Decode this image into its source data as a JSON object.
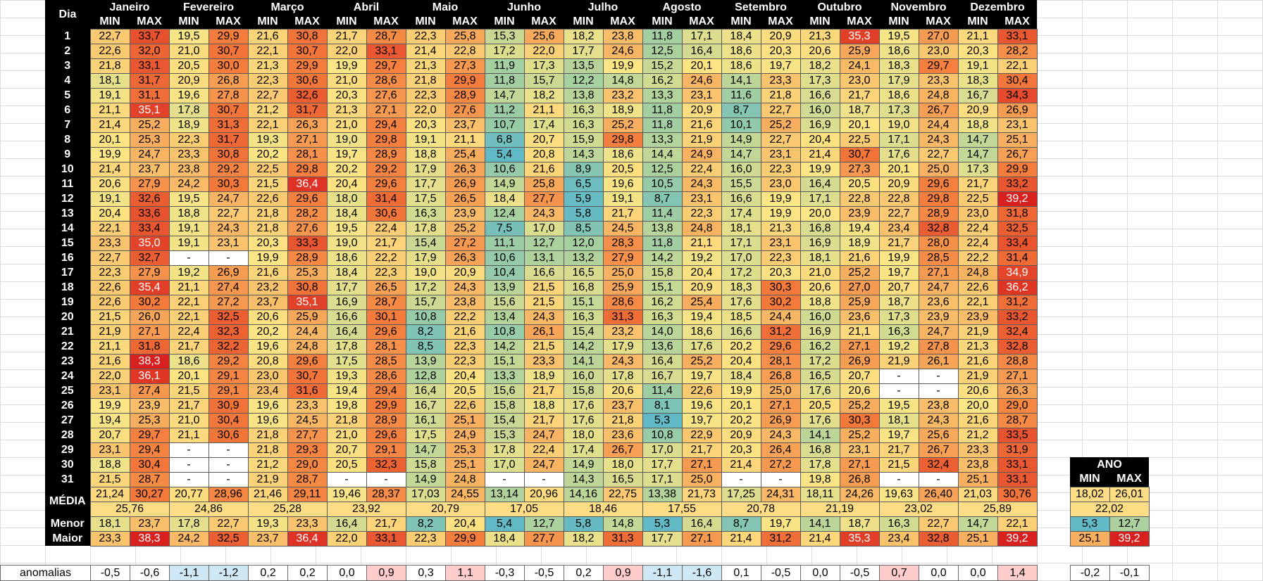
{
  "header": {
    "dia": "Dia",
    "min": "MIN",
    "max": "MAX",
    "months": [
      "Janeiro",
      "Fevereiro",
      "Março",
      "Abril",
      "Maio",
      "Junho",
      "Julho",
      "Agosto",
      "Setembro",
      "Outubro",
      "Novembro",
      "Dezembro"
    ]
  },
  "days": [
    [
      "22,7",
      "33,7",
      "19,5",
      "29,9",
      "21,6",
      "30,8",
      "21,7",
      "28,7",
      "22,3",
      "25,8",
      "15,3",
      "25,6",
      "18,2",
      "23,8",
      "11,8",
      "17,1",
      "18,4",
      "20,9",
      "21,3",
      "35,3",
      "19,5",
      "27,0",
      "21,1",
      "33,1"
    ],
    [
      "22,6",
      "32,0",
      "21,0",
      "30,7",
      "22,1",
      "30,7",
      "22,0",
      "33,1",
      "21,4",
      "22,8",
      "17,2",
      "22,0",
      "17,7",
      "24,6",
      "12,5",
      "16,4",
      "18,6",
      "20,3",
      "20,6",
      "25,9",
      "18,6",
      "23,0",
      "20,3",
      "28,2"
    ],
    [
      "21,8",
      "33,1",
      "20,5",
      "30,0",
      "21,3",
      "29,9",
      "19,9",
      "29,7",
      "21,3",
      "27,3",
      "11,9",
      "17,3",
      "13,5",
      "19,9",
      "15,2",
      "20,1",
      "18,6",
      "19,7",
      "18,2",
      "24,1",
      "18,3",
      "29,7",
      "19,1",
      "22,1"
    ],
    [
      "18,1",
      "31,7",
      "20,9",
      "26,8",
      "22,3",
      "30,6",
      "21,0",
      "28,6",
      "21,8",
      "29,9",
      "11,8",
      "15,7",
      "12,2",
      "14,8",
      "16,2",
      "24,6",
      "14,1",
      "23,3",
      "17,3",
      "23,0",
      "17,9",
      "23,3",
      "18,3",
      "30,4"
    ],
    [
      "19,1",
      "31,1",
      "19,6",
      "27,8",
      "22,7",
      "32,6",
      "20,3",
      "27,6",
      "22,3",
      "28,9",
      "14,7",
      "18,2",
      "13,8",
      "23,2",
      "13,3",
      "23,1",
      "11,6",
      "21,8",
      "16,6",
      "21,7",
      "18,6",
      "24,8",
      "16,7",
      "34,3"
    ],
    [
      "21,1",
      "35,1",
      "17,8",
      "30,7",
      "21,2",
      "31,7",
      "21,3",
      "27,1",
      "22,0",
      "27,6",
      "11,2",
      "21,1",
      "16,3",
      "18,9",
      "11,8",
      "20,9",
      "8,7",
      "22,7",
      "16,0",
      "18,7",
      "17,3",
      "26,7",
      "20,9",
      "26,9"
    ],
    [
      "21,4",
      "25,2",
      "18,9",
      "31,3",
      "22,1",
      "26,3",
      "21,0",
      "29,4",
      "20,3",
      "23,7",
      "10,7",
      "17,4",
      "16,3",
      "25,2",
      "11,8",
      "21,6",
      "10,1",
      "25,2",
      "16,9",
      "20,1",
      "19,0",
      "24,4",
      "18,8",
      "23,1"
    ],
    [
      "20,1",
      "25,3",
      "22,3",
      "31,7",
      "19,3",
      "27,1",
      "19,0",
      "29,8",
      "19,1",
      "21,1",
      "6,8",
      "20,7",
      "15,9",
      "29,8",
      "13,3",
      "21,9",
      "14,9",
      "22,7",
      "20,4",
      "22,5",
      "17,1",
      "24,3",
      "14,7",
      "25,1"
    ],
    [
      "19,9",
      "24,7",
      "23,3",
      "30,8",
      "20,2",
      "28,1",
      "19,7",
      "28,9",
      "18,8",
      "25,4",
      "5,4",
      "20,8",
      "14,3",
      "18,6",
      "14,4",
      "24,9",
      "14,7",
      "23,1",
      "21,4",
      "30,7",
      "17,6",
      "22,7",
      "14,7",
      "26,7"
    ],
    [
      "21,4",
      "23,7",
      "23,8",
      "29,2",
      "22,5",
      "29,8",
      "20,2",
      "29,2",
      "17,9",
      "26,3",
      "10,6",
      "21,6",
      "8,9",
      "20,5",
      "12,5",
      "22,4",
      "16,0",
      "22,3",
      "19,9",
      "27,3",
      "20,1",
      "25,0",
      "17,3",
      "29,9"
    ],
    [
      "20,6",
      "27,9",
      "24,2",
      "30,3",
      "21,5",
      "36,4",
      "20,4",
      "29,6",
      "17,7",
      "26,9",
      "14,9",
      "25,8",
      "6,5",
      "19,6",
      "10,5",
      "24,3",
      "15,5",
      "23,0",
      "16,4",
      "20,5",
      "20,9",
      "29,6",
      "21,7",
      "33,2"
    ],
    [
      "19,1",
      "32,6",
      "19,5",
      "24,7",
      "22,6",
      "29,6",
      "18,0",
      "31,4",
      "17,5",
      "26,5",
      "18,4",
      "27,7",
      "5,9",
      "19,1",
      "8,7",
      "23,1",
      "16,6",
      "19,9",
      "17,1",
      "22,8",
      "22,8",
      "29,8",
      "22,5",
      "39,2"
    ],
    [
      "20,4",
      "33,6",
      "18,8",
      "22,7",
      "21,8",
      "28,2",
      "18,4",
      "30,6",
      "16,3",
      "23,9",
      "12,4",
      "24,3",
      "5,8",
      "21,7",
      "11,4",
      "22,3",
      "17,4",
      "19,9",
      "20,0",
      "23,9",
      "22,7",
      "28,9",
      "23,0",
      "31,8"
    ],
    [
      "22,1",
      "33,4",
      "19,1",
      "24,3",
      "21,8",
      "27,6",
      "19,5",
      "22,4",
      "17,8",
      "25,2",
      "7,5",
      "17,0",
      "8,5",
      "24,5",
      "13,8",
      "24,8",
      "18,1",
      "21,3",
      "16,8",
      "19,4",
      "23,4",
      "32,8",
      "22,4",
      "32,5"
    ],
    [
      "23,3",
      "35,0",
      "19,1",
      "23,1",
      "20,3",
      "33,3",
      "19,0",
      "21,7",
      "15,4",
      "27,2",
      "11,1",
      "12,7",
      "12,0",
      "28,3",
      "11,8",
      "21,1",
      "17,1",
      "23,1",
      "16,9",
      "18,9",
      "21,7",
      "28,0",
      "22,4",
      "33,4"
    ],
    [
      "22,7",
      "32,7",
      "-",
      "-",
      "19,9",
      "28,9",
      "18,6",
      "22,2",
      "17,9",
      "26,3",
      "10,6",
      "13,1",
      "13,2",
      "27,9",
      "14,2",
      "19,2",
      "17,0",
      "22,3",
      "18,1",
      "21,6",
      "19,9",
      "28,5",
      "22,2",
      "31,4"
    ],
    [
      "22,3",
      "27,9",
      "19,2",
      "26,9",
      "21,6",
      "25,3",
      "18,4",
      "22,3",
      "19,0",
      "20,9",
      "10,4",
      "16,6",
      "16,5",
      "25,0",
      "15,8",
      "20,4",
      "17,2",
      "20,3",
      "21,0",
      "25,2",
      "19,7",
      "27,1",
      "24,8",
      "34,9"
    ],
    [
      "22,6",
      "35,4",
      "21,1",
      "27,4",
      "23,2",
      "30,8",
      "17,7",
      "26,5",
      "17,2",
      "24,3",
      "13,9",
      "21,5",
      "16,8",
      "25,9",
      "15,1",
      "20,9",
      "18,3",
      "30,3",
      "20,6",
      "27,0",
      "20,7",
      "24,7",
      "22,6",
      "36,2"
    ],
    [
      "22,6",
      "30,2",
      "22,1",
      "27,2",
      "23,7",
      "35,1",
      "16,9",
      "28,7",
      "15,7",
      "23,8",
      "15,6",
      "21,5",
      "15,1",
      "28,6",
      "16,2",
      "25,4",
      "17,6",
      "30,2",
      "18,8",
      "25,9",
      "18,7",
      "23,6",
      "22,1",
      "31,2"
    ],
    [
      "21,5",
      "26,0",
      "22,1",
      "32,5",
      "20,6",
      "25,9",
      "16,6",
      "30,1",
      "10,8",
      "22,2",
      "13,4",
      "24,3",
      "16,3",
      "31,3",
      "16,3",
      "19,4",
      "18,5",
      "24,4",
      "16,0",
      "23,6",
      "17,3",
      "23,9",
      "23,9",
      "33,2"
    ],
    [
      "21,9",
      "27,1",
      "22,4",
      "32,3",
      "20,2",
      "24,4",
      "16,4",
      "29,6",
      "8,2",
      "21,6",
      "10,8",
      "26,1",
      "15,4",
      "23,2",
      "14,0",
      "18,6",
      "16,6",
      "31,2",
      "16,9",
      "21,1",
      "16,3",
      "24,7",
      "21,9",
      "32,4"
    ],
    [
      "21,1",
      "31,8",
      "21,7",
      "32,2",
      "19,6",
      "24,8",
      "17,8",
      "28,1",
      "8,5",
      "22,3",
      "14,2",
      "21,5",
      "14,2",
      "17,9",
      "13,6",
      "17,6",
      "20,2",
      "29,6",
      "16,2",
      "27,1",
      "19,2",
      "27,8",
      "21,3",
      "32,8"
    ],
    [
      "21,6",
      "38,3",
      "18,6",
      "29,2",
      "20,8",
      "29,6",
      "17,5",
      "28,5",
      "13,9",
      "22,3",
      "15,1",
      "23,3",
      "14,1",
      "24,3",
      "16,4",
      "25,2",
      "20,4",
      "28,1",
      "17,2",
      "26,9",
      "21,9",
      "26,1",
      "21,6",
      "28,8"
    ],
    [
      "22,0",
      "36,1",
      "20,1",
      "29,1",
      "23,0",
      "30,7",
      "19,3",
      "28,6",
      "12,8",
      "20,4",
      "13,3",
      "18,9",
      "16,0",
      "17,8",
      "16,7",
      "19,7",
      "18,4",
      "26,8",
      "16,5",
      "20,7",
      "-",
      "-",
      "21,9",
      "27,1"
    ],
    [
      "23,1",
      "27,4",
      "21,5",
      "29,1",
      "23,4",
      "31,6",
      "19,4",
      "29,4",
      "16,4",
      "20,5",
      "15,6",
      "21,7",
      "15,8",
      "20,6",
      "11,4",
      "22,6",
      "19,9",
      "25,0",
      "17,6",
      "20,6",
      "-",
      "-",
      "20,6",
      "26,3"
    ],
    [
      "19,9",
      "23,9",
      "21,7",
      "30,9",
      "19,6",
      "23,3",
      "19,8",
      "29,9",
      "16,7",
      "22,6",
      "15,8",
      "18,8",
      "17,6",
      "23,7",
      "8,1",
      "19,6",
      "20,1",
      "27,1",
      "20,5",
      "25,2",
      "19,5",
      "23,8",
      "20,0",
      "29,0"
    ],
    [
      "19,4",
      "25,3",
      "21,0",
      "30,4",
      "19,6",
      "24,5",
      "21,8",
      "28,9",
      "16,1",
      "25,1",
      "15,4",
      "21,7",
      "17,6",
      "21,8",
      "5,3",
      "19,7",
      "20,2",
      "26,9",
      "17,6",
      "30,3",
      "18,1",
      "24,3",
      "21,6",
      "28,7"
    ],
    [
      "20,7",
      "29,7",
      "21,1",
      "30,6",
      "21,8",
      "27,7",
      "21,0",
      "29,6",
      "17,5",
      "24,9",
      "15,3",
      "24,7",
      "18,0",
      "23,6",
      "10,8",
      "22,9",
      "20,9",
      "24,3",
      "14,1",
      "25,2",
      "19,7",
      "25,6",
      "21,2",
      "33,5"
    ],
    [
      "23,1",
      "29,4",
      "-",
      "-",
      "21,8",
      "29,3",
      "20,7",
      "29,1",
      "14,7",
      "25,3",
      "17,8",
      "22,4",
      "17,4",
      "26,7",
      "17,0",
      "21,7",
      "20,3",
      "26,4",
      "16,8",
      "23,1",
      "21,7",
      "26,7",
      "23,3",
      "31,9"
    ],
    [
      "18,8",
      "30,4",
      "-",
      "-",
      "21,2",
      "29,0",
      "20,5",
      "32,3",
      "15,8",
      "25,1",
      "17,0",
      "24,7",
      "14,9",
      "18,0",
      "17,7",
      "27,1",
      "21,4",
      "27,2",
      "17,8",
      "27,1",
      "21,5",
      "32,4",
      "23,8",
      "33,1"
    ],
    [
      "21,5",
      "28,7",
      "-",
      "-",
      "21,9",
      "28,7",
      "-",
      "-",
      "14,9",
      "24,8",
      "-",
      "-",
      "14,3",
      "16,5",
      "17,1",
      "25,0",
      "-",
      "-",
      "19,8",
      "26,8",
      "-",
      "-",
      "25,1",
      "33,1"
    ]
  ],
  "media_label": "MÉDIA",
  "media_minmax": [
    "21,24",
    "30,27",
    "20,77",
    "28,96",
    "21,46",
    "29,11",
    "19,46",
    "28,37",
    "17,03",
    "24,55",
    "13,14",
    "20,96",
    "14,16",
    "22,75",
    "13,38",
    "21,73",
    "17,25",
    "24,31",
    "18,11",
    "24,26",
    "19,63",
    "26,40",
    "21,03",
    "30,76"
  ],
  "media_month": [
    "25,76",
    "24,86",
    "25,28",
    "23,92",
    "20,79",
    "17,05",
    "18,46",
    "17,55",
    "20,78",
    "21,19",
    "23,02",
    "25,89"
  ],
  "menor_label": "Menor",
  "menor": [
    "18,1",
    "23,7",
    "17,8",
    "22,7",
    "19,3",
    "23,3",
    "16,4",
    "21,7",
    "8,2",
    "20,4",
    "5,4",
    "12,7",
    "5,8",
    "14,8",
    "5,3",
    "16,4",
    "8,7",
    "19,7",
    "14,1",
    "18,7",
    "16,3",
    "22,7",
    "14,7",
    "22,1"
  ],
  "maior_label": "Maior",
  "maior": [
    "23,3",
    "38,3",
    "24,2",
    "32,5",
    "23,7",
    "36,4",
    "22,0",
    "33,1",
    "22,3",
    "29,9",
    "18,4",
    "27,7",
    "18,2",
    "31,3",
    "17,7",
    "27,1",
    "21,4",
    "31,2",
    "21,4",
    "35,3",
    "23,4",
    "32,8",
    "25,1",
    "39,2"
  ],
  "ano": {
    "label": "ANO",
    "min_label": "MIN",
    "max_label": "MAX",
    "media_min": "18,02",
    "media_max": "26,01",
    "media": "22,02",
    "menor_min": "5,3",
    "menor_max": "12,7",
    "maior_min": "25,1",
    "maior_max": "39,2"
  },
  "anomalias_label": "anomalias",
  "anomalias": [
    "-0,5",
    "-0,6",
    "-1,1",
    "-1,2",
    "0,2",
    "0,2",
    "0,0",
    "0,9",
    "0,3",
    "1,1",
    "-0,3",
    "-0,5",
    "0,2",
    "0,9",
    "-1,1",
    "-1,6",
    "0,1",
    "-0,5",
    "0,0",
    "-0,5",
    "0,7",
    "0,0",
    "0,0",
    "1,4",
    "-0,2",
    "-0,1"
  ],
  "colors": {
    "header_bg": "#000000",
    "header_text": "#ffffff",
    "cool_blue": "#5eb8c8",
    "mild_green": "#a4cfa0",
    "warm_yellow": "#fce584",
    "hot_orange": "#f47c3c",
    "extreme_red": "#d8201e",
    "media_row": "#fcdc84",
    "anomaly_positive": "#ffcccc",
    "anomaly_negative": "#cfe8f5",
    "anomaly_neutral": "#ffffff"
  }
}
